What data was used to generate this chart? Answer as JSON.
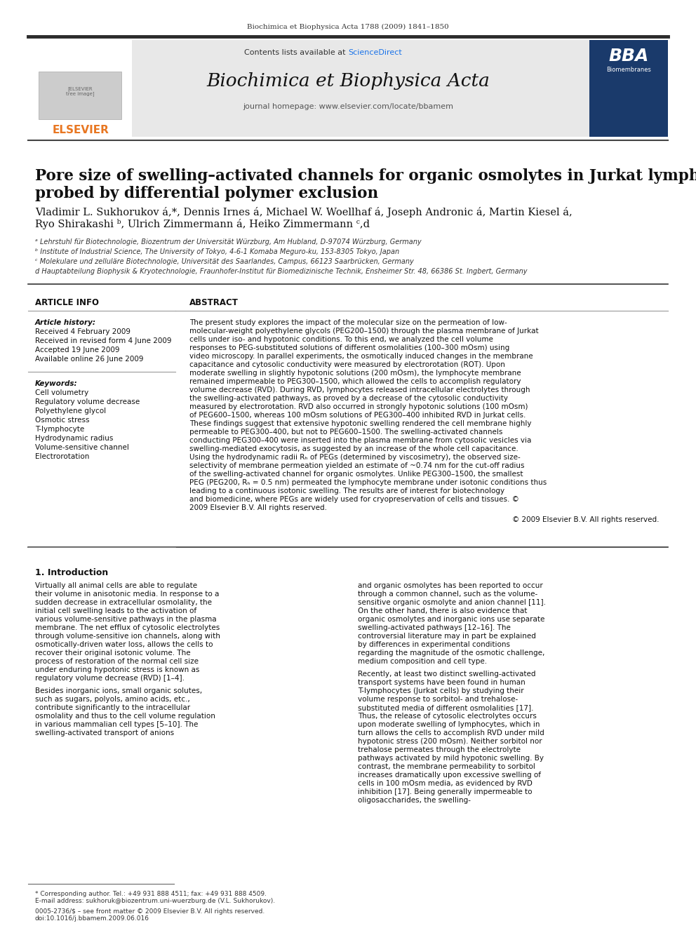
{
  "bg_color": "#ffffff",
  "header_journal_text": "Biochimica et Biophysica Acta 1788 (2009) 1841–1850",
  "header_bar_color": "#2b2b2b",
  "contents_text": "Contents lists available at ",
  "sciencedirect_text": "ScienceDirect",
  "sciencedirect_color": "#e87722",
  "journal_name": "Biochimica et Biophysica Acta",
  "journal_homepage": "journal homepage: www.elsevier.com/locate/bbamem",
  "header_box_color": "#e8e8e8",
  "title": "Pore size of swelling–activated channels for organic osmolytes in Jurkat lymphocytes,\nprobed by differential polymer exclusion",
  "authors": "Vladimir L. Sukhorukov á,*, Dennis Irnes á, Michael W. Woellhaf á, Joseph Andronic á, Martin Kiesel á,\nRyo Shirakashi ᵇ, Ulrich Zimmermann á, Heiko Zimmermann ᶜ,d",
  "affiliations": [
    "ᵃ Lehrstuhl für Biotechnologie, Biozentrum der Universität Würzburg, Am Hubland, D-97074 Würzburg, Germany",
    "ᵇ Institute of Industrial Science, The University of Tokyo, 4-6-1 Komaba Meguro-ku, 153-8305 Tokyo, Japan",
    "ᶜ Molekulare und zelluläre Biotechnologie, Universität des Saarlandes, Campus, 66123 Saarbrücken, Germany",
    "d Hauptabteilung Biophysik & Kryotechnologie, Fraunhofer-Institut für Biomedizinische Technik, Ensheimer Str. 48, 66386 St. Ingbert, Germany"
  ],
  "article_info_title": "ARTICLE INFO",
  "abstract_title": "ABSTRACT",
  "article_history_label": "Article history:",
  "article_history": [
    "Received 4 February 2009",
    "Received in revised form 4 June 2009",
    "Accepted 19 June 2009",
    "Available online 26 June 2009"
  ],
  "keywords_label": "Keywords:",
  "keywords": [
    "Cell volumetry",
    "Regulatory volume decrease",
    "Polyethylene glycol",
    "Osmotic stress",
    "T-lymphocyte",
    "Hydrodynamic radius",
    "Volume-sensitive channel",
    "Electrorotation"
  ],
  "abstract_text": "The present study explores the impact of the molecular size on the permeation of low-molecular-weight polyethylene glycols (PEG200–1500) through the plasma membrane of Jurkat cells under iso- and hypotonic conditions. To this end, we analyzed the cell volume responses to PEG-substituted solutions of different osmolalities (100–300 mOsm) using video microscopy. In parallel experiments, the osmotically induced changes in the membrane capacitance and cytosolic conductivity were measured by electrorotation (ROT). Upon moderate swelling in slightly hypotonic solutions (200 mOsm), the lymphocyte membrane remained impermeable to PEG300–1500, which allowed the cells to accomplish regulatory volume decrease (RVD). During RVD, lymphocytes released intracellular electrolytes through the swelling-activated pathways, as proved by a decrease of the cytosolic conductivity measured by electrorotation. RVD also occurred in strongly hypotonic solutions (100 mOsm) of PEG600–1500, whereas 100 mOsm solutions of PEG300–400 inhibited RVD in Jurkat cells. These findings suggest that extensive hypotonic swelling rendered the cell membrane highly permeable to PEG300–400, but not to PEG600–1500. The swelling-activated channels conducting PEG300–400 were inserted into the plasma membrane from cytosolic vesicles via swelling-mediated exocytosis, as suggested by an increase of the whole cell capacitance. Using the hydrodynamic radii Rₕ of PEGs (determined by viscosimetry), the observed size-selectivity of membrane permeation yielded an estimate of ~0.74 nm for the cut-off radius of the swelling-activated channel for organic osmolytes. Unlike PEG300–1500, the smallest PEG (PEG200, Rₕ = 0.5 nm) permeated the lymphocyte membrane under isotonic conditions thus leading to a continuous isotonic swelling. The results are of interest for biotechnology and biomedicine, where PEGs are widely used for cryopreservation of cells and tissues.\n© 2009 Elsevier B.V. All rights reserved.",
  "intro_title": "1. Introduction",
  "intro_text_left": "Virtually all animal cells are able to regulate their volume in anisotonic media. In response to a sudden decrease in extracellular osmolality, the initial cell swelling leads to the activation of various volume-sensitive pathways in the plasma membrane. The net efflux of cytosolic electrolytes through volume-sensitive ion channels, along with osmotically-driven water loss, allows the cells to recover their original isotonic volume. The process of restoration of the normal cell size under enduring hypotonic stress is known as regulatory volume decrease (RVD) [1–4].\n\nBesides inorganic ions, small organic solutes, such as sugars, polyols, amino acids, etc., contribute significantly to the intracellular osmolality and thus to the cell volume regulation in various mammalian cell types [5–10]. The swelling-activated transport of anions",
  "intro_text_right": "and organic osmolytes has been reported to occur through a common channel, such as the volume-sensitive organic osmolyte and anion channel [11]. On the other hand, there is also evidence that organic osmolytes and inorganic ions use separate swelling-activated pathways [12–16]. The controversial literature may in part be explained by differences in experimental conditions regarding the magnitude of the osmotic challenge, medium composition and cell type.\n\nRecently, at least two distinct swelling-activated transport systems have been found in human T-lymphocytes (Jurkat cells) by studying their volume response to sorbitol- and trehalose-substituted media of different osmolalities [17]. Thus, the release of cytosolic electrolytes occurs upon moderate swelling of lymphocytes, which in turn allows the cells to accomplish RVD under mild hypotonic stress (200 mOsm). Neither sorbitol nor trehalose permeates through the electrolyte pathways activated by mild hypotonic swelling. By contrast, the membrane permeability to sorbitol increases dramatically upon excessive swelling of cells in 100 mOsm media, as evidenced by RVD inhibition [17]. Being generally impermeable to oligosaccharides, the swelling-",
  "footnote_text": "* Corresponding author. Tel.: +49 931 888 4511; fax: +49 931 888 4509.\nE-mail address: sukhoruk@biozentrum.uni-wuerzburg.de (V.L. Sukhorukov).",
  "issn_text": "0005-2736/$ – see front matter © 2009 Elsevier B.V. All rights reserved.\ndoi:10.1016/j.bbamem.2009.06.016",
  "elsevier_color": "#e87722",
  "separator_color": "#000000",
  "thin_line_color": "#999999"
}
